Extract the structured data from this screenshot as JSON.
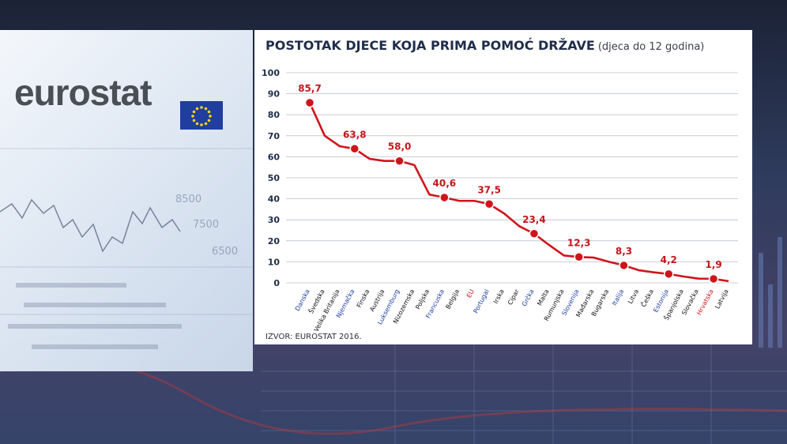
{
  "logo": {
    "text": "eurostat"
  },
  "chart_data": {
    "type": "line",
    "title": "POSTOTAK DJECE KOJA PRIMA POMOĆ DRŽAVE",
    "subtitle": "(djeca do 12 godina)",
    "source": "IZVOR: EUROSTAT 2016.",
    "ylim": [
      0,
      100
    ],
    "yticks": [
      "100",
      "90",
      "80",
      "70",
      "60",
      "50",
      "40",
      "30",
      "20",
      "10",
      "0"
    ],
    "grid": true,
    "categories": [
      "Danska",
      "Švedska",
      "Velika Britanija",
      "Njemačka",
      "Finska",
      "Austrija",
      "Luksemburg",
      "Nizozemska",
      "Poljska",
      "Francuska",
      "Belgija",
      "EU",
      "Portugal",
      "Irska",
      "Cipar",
      "Grčka",
      "Malta",
      "Rumunjska",
      "Slovenija",
      "Mađarska",
      "Bugarska",
      "Italija",
      "Litva",
      "Češka",
      "Estonija",
      "Španjolska",
      "Slovačka",
      "Hrvatska",
      "Latvija"
    ],
    "category_colors": [
      "#1f3e9e",
      "#111111",
      "#111111",
      "#1f3e9e",
      "#111111",
      "#111111",
      "#1f3e9e",
      "#111111",
      "#111111",
      "#1f3e9e",
      "#111111",
      "#d0141b",
      "#1f3e9e",
      "#111111",
      "#111111",
      "#1f3e9e",
      "#111111",
      "#111111",
      "#1f3e9e",
      "#111111",
      "#111111",
      "#1f3e9e",
      "#111111",
      "#111111",
      "#1f3e9e",
      "#111111",
      "#111111",
      "#d0141b",
      "#111111"
    ],
    "values": [
      85.7,
      70,
      65,
      63.8,
      59,
      58,
      58.0,
      56,
      42,
      40.6,
      39,
      39,
      37.5,
      33,
      27,
      23.4,
      18,
      13,
      12.3,
      12,
      10,
      8.3,
      6,
      5,
      4.2,
      3,
      2,
      1.9,
      0.8
    ],
    "labels": [
      {
        "index": 0,
        "text": "85,7"
      },
      {
        "index": 3,
        "text": "63,8"
      },
      {
        "index": 6,
        "text": "58,0"
      },
      {
        "index": 9,
        "text": "40,6"
      },
      {
        "index": 12,
        "text": "37,5"
      },
      {
        "index": 15,
        "text": "23,4"
      },
      {
        "index": 18,
        "text": "12,3"
      },
      {
        "index": 21,
        "text": "8,3"
      },
      {
        "index": 24,
        "text": "4,2"
      },
      {
        "index": 27,
        "text": "1,9"
      }
    ],
    "line_color": "#d0141b"
  }
}
